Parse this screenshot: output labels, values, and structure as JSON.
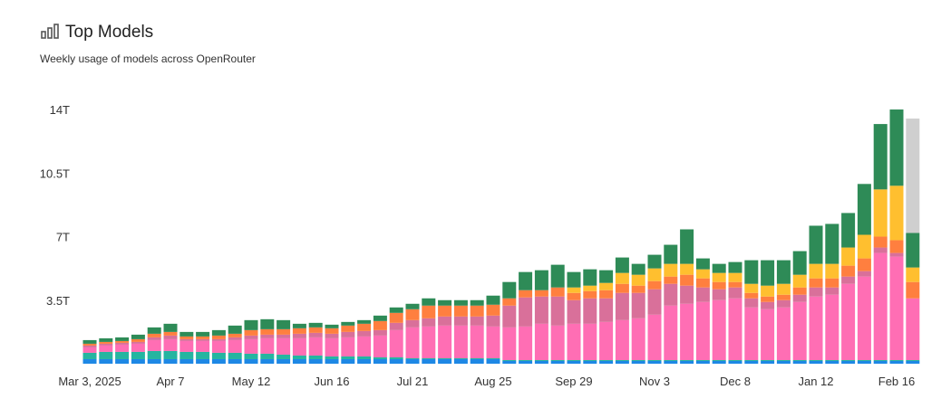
{
  "header": {
    "title": "Top Models",
    "subtitle": "Weekly usage of models across OpenRouter"
  },
  "chart_data": {
    "type": "bar",
    "stacked": true,
    "categories": [
      "Mar 3, 2025",
      null,
      null,
      null,
      null,
      "Apr 7",
      null,
      null,
      null,
      null,
      "May 12",
      null,
      null,
      null,
      null,
      "Jun 16",
      null,
      null,
      null,
      null,
      "Jul 21",
      null,
      null,
      null,
      null,
      "Aug 25",
      null,
      null,
      null,
      null,
      "Sep 29",
      null,
      null,
      null,
      null,
      "Nov 3",
      null,
      null,
      null,
      null,
      "Dec 8",
      null,
      null,
      null,
      null,
      "Jan 12",
      null,
      null,
      null,
      null,
      "Feb 16",
      null
    ],
    "series": [
      {
        "color": "#1e88e5",
        "values": [
          0.25,
          0.25,
          0.25,
          0.25,
          0.25,
          0.25,
          0.25,
          0.25,
          0.25,
          0.25,
          0.25,
          0.25,
          0.25,
          0.25,
          0.25,
          0.25,
          0.25,
          0.25,
          0.25,
          0.25,
          0.25,
          0.25,
          0.25,
          0.25,
          0.25,
          0.25,
          0.15,
          0.15,
          0.15,
          0.15,
          0.15,
          0.15,
          0.15,
          0.15,
          0.15,
          0.15,
          0.15,
          0.15,
          0.15,
          0.15,
          0.15,
          0.15,
          0.15,
          0.15,
          0.15,
          0.15,
          0.15,
          0.15,
          0.15,
          0.15,
          0.15,
          0.15
        ]
      },
      {
        "color": "#26b5a0",
        "values": [
          0.35,
          0.4,
          0.4,
          0.4,
          0.45,
          0.45,
          0.4,
          0.4,
          0.35,
          0.35,
          0.3,
          0.3,
          0.25,
          0.2,
          0.2,
          0.15,
          0.15,
          0.15,
          0.1,
          0.1,
          0.05,
          0.05,
          0.05,
          0.05,
          0.05,
          0.05,
          0.05,
          0.05,
          0.05,
          0.05,
          0.05,
          0.05,
          0.05,
          0.05,
          0.05,
          0.05,
          0.05,
          0.05,
          0.05,
          0.05,
          0.05,
          0.05,
          0.05,
          0.05,
          0.05,
          0.05,
          0.05,
          0.05,
          0.05,
          0.05,
          0.05,
          0.05
        ]
      },
      {
        "color": "#ff6eb4",
        "values": [
          0.3,
          0.35,
          0.4,
          0.45,
          0.6,
          0.65,
          0.6,
          0.6,
          0.65,
          0.7,
          0.8,
          0.85,
          0.9,
          0.95,
          1.0,
          1.0,
          1.05,
          1.1,
          1.2,
          1.5,
          1.7,
          1.75,
          1.8,
          1.8,
          1.8,
          1.75,
          1.8,
          1.85,
          2.0,
          1.9,
          2.0,
          2.0,
          2.1,
          2.2,
          2.3,
          2.5,
          3.0,
          3.1,
          3.2,
          3.3,
          3.4,
          2.9,
          2.8,
          2.9,
          3.2,
          3.5,
          3.6,
          4.2,
          4.6,
          5.9,
          5.7,
          3.4
        ]
      },
      {
        "color": "#d9709a",
        "values": [
          0.1,
          0.1,
          0.1,
          0.1,
          0.15,
          0.2,
          0.1,
          0.1,
          0.1,
          0.15,
          0.2,
          0.2,
          0.2,
          0.25,
          0.25,
          0.25,
          0.3,
          0.3,
          0.3,
          0.4,
          0.4,
          0.45,
          0.5,
          0.5,
          0.5,
          0.6,
          1.2,
          1.6,
          1.5,
          1.6,
          1.3,
          1.4,
          1.3,
          1.5,
          1.4,
          1.4,
          1.2,
          1.0,
          0.8,
          0.6,
          0.6,
          0.5,
          0.4,
          0.4,
          0.4,
          0.5,
          0.4,
          0.4,
          0.3,
          0.3,
          0.2,
          0
        ]
      },
      {
        "color": "#ff7f3f",
        "values": [
          0.1,
          0.1,
          0.1,
          0.15,
          0.2,
          0.2,
          0.15,
          0.15,
          0.2,
          0.2,
          0.3,
          0.3,
          0.3,
          0.3,
          0.3,
          0.3,
          0.35,
          0.4,
          0.5,
          0.55,
          0.6,
          0.7,
          0.6,
          0.6,
          0.6,
          0.6,
          0.4,
          0.4,
          0.35,
          0.5,
          0.4,
          0.4,
          0.45,
          0.5,
          0.4,
          0.45,
          0.4,
          0.6,
          0.5,
          0.4,
          0.3,
          0.3,
          0.3,
          0.3,
          0.4,
          0.5,
          0.5,
          0.6,
          0.7,
          0.6,
          0.7,
          0.9
        ]
      },
      {
        "color": "#ffbf2f",
        "values": [
          0,
          0,
          0,
          0,
          0,
          0,
          0,
          0,
          0,
          0,
          0,
          0,
          0,
          0,
          0,
          0,
          0,
          0,
          0,
          0,
          0,
          0,
          0,
          0,
          0,
          0,
          0,
          0,
          0,
          0,
          0.3,
          0.3,
          0.4,
          0.6,
          0.6,
          0.7,
          0.7,
          0.6,
          0.5,
          0.5,
          0.5,
          0.5,
          0.6,
          0.6,
          0.7,
          0.8,
          0.8,
          1.0,
          1.3,
          2.6,
          3.0,
          0.8
        ]
      },
      {
        "color": "#2e8b57",
        "values": [
          0.2,
          0.2,
          0.2,
          0.25,
          0.35,
          0.45,
          0.25,
          0.25,
          0.3,
          0.45,
          0.55,
          0.55,
          0.5,
          0.25,
          0.25,
          0.2,
          0.2,
          0.2,
          0.3,
          0.3,
          0.3,
          0.4,
          0.3,
          0.3,
          0.3,
          0.5,
          0.9,
          1.0,
          1.1,
          1.25,
          0.85,
          0.9,
          0.7,
          0.85,
          0.6,
          0.75,
          1.05,
          1.9,
          0.6,
          0.5,
          0.6,
          1.3,
          1.4,
          1.3,
          1.3,
          2.1,
          2.2,
          1.9,
          2.8,
          3.6,
          4.2,
          1.9
        ]
      },
      {
        "color": "#cfcfcf",
        "values": [
          0,
          0,
          0,
          0,
          0,
          0,
          0,
          0,
          0,
          0,
          0,
          0,
          0,
          0,
          0,
          0,
          0,
          0,
          0,
          0,
          0,
          0,
          0,
          0,
          0,
          0,
          0,
          0,
          0,
          0,
          0,
          0,
          0,
          0,
          0,
          0,
          0,
          0,
          0,
          0,
          0,
          0,
          0,
          0,
          0,
          0,
          0,
          0,
          0,
          0,
          0,
          6.3
        ]
      }
    ],
    "ylim": [
      0,
      14.5
    ],
    "yticks": [
      {
        "value": 3.5,
        "label": "3.5T"
      },
      {
        "value": 7,
        "label": "7T"
      },
      {
        "value": 10.5,
        "label": "10.5T"
      },
      {
        "value": 14,
        "label": "14T"
      }
    ],
    "grid": false
  }
}
